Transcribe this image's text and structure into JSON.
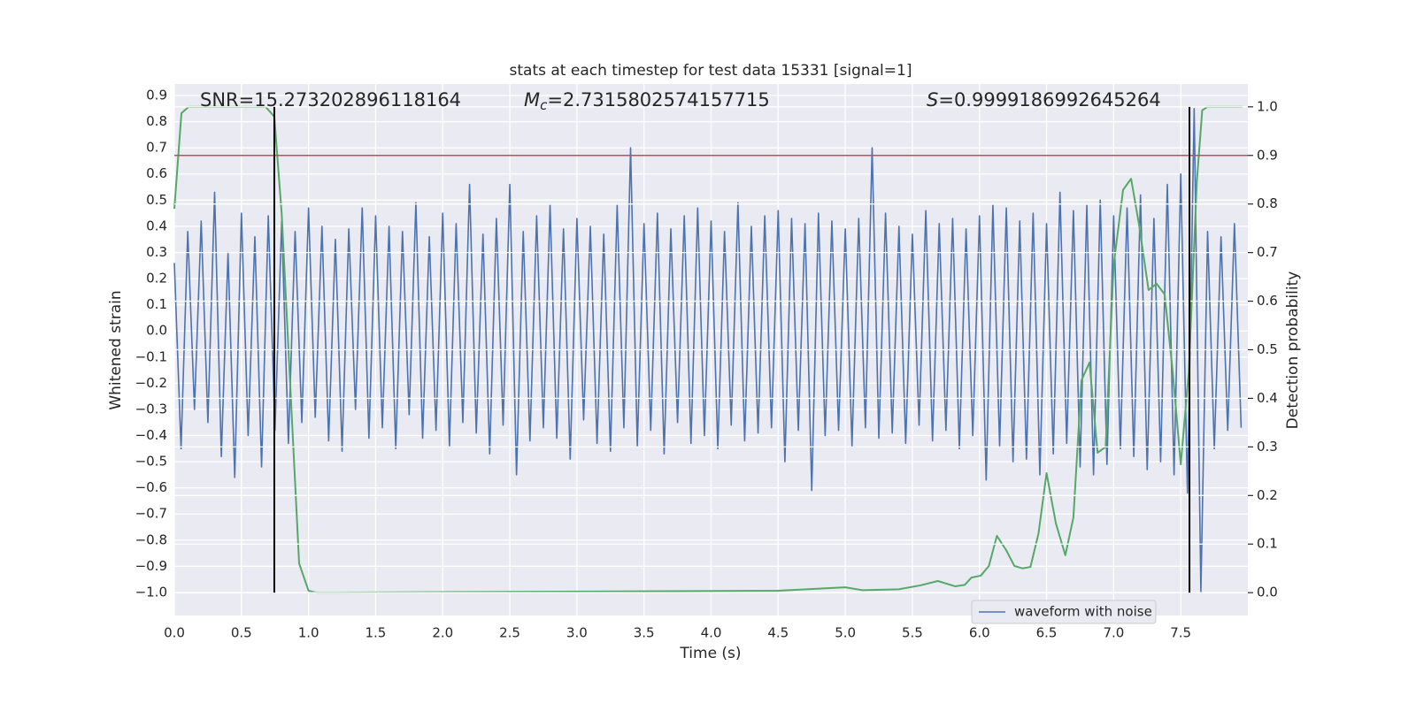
{
  "chart_data": {
    "type": "line",
    "title": "stats at each timestep for test data 15331 [signal=1]",
    "xlabel": "Time (s)",
    "ylabel": "Whitened strain",
    "y2label": "Detection probability",
    "annotations": [
      {
        "text": "SNR=15.273202896118164"
      },
      {
        "symbol": "M",
        "subscript": "c",
        "text": "=2.7315802574157715"
      },
      {
        "symbol": "S",
        "text": "=0.9999186992645264"
      }
    ],
    "xlim": [
      0,
      8
    ],
    "ylim": [
      -1.088,
      0.944
    ],
    "y2lim": [
      -0.047,
      1.047
    ],
    "xticks": [
      {
        "value": 0,
        "label": "0.0"
      },
      {
        "value": 0.5,
        "label": "0.5"
      },
      {
        "value": 1,
        "label": "1.0"
      },
      {
        "value": 1.5,
        "label": "1.5"
      },
      {
        "value": 2,
        "label": "2.0"
      },
      {
        "value": 2.5,
        "label": "2.5"
      },
      {
        "value": 3,
        "label": "3.0"
      },
      {
        "value": 3.5,
        "label": "3.5"
      },
      {
        "value": 4,
        "label": "4.0"
      },
      {
        "value": 4.5,
        "label": "4.5"
      },
      {
        "value": 5,
        "label": "5.0"
      },
      {
        "value": 5.5,
        "label": "5.5"
      },
      {
        "value": 6,
        "label": "6.0"
      },
      {
        "value": 6.5,
        "label": "6.5"
      },
      {
        "value": 7,
        "label": "7.0"
      },
      {
        "value": 7.5,
        "label": "7.5"
      }
    ],
    "yticks": [
      {
        "value": -1,
        "label": "−1.0"
      },
      {
        "value": -0.9,
        "label": "−0.9"
      },
      {
        "value": -0.8,
        "label": "−0.8"
      },
      {
        "value": -0.7,
        "label": "−0.7"
      },
      {
        "value": -0.6,
        "label": "−0.6"
      },
      {
        "value": -0.5,
        "label": "−0.5"
      },
      {
        "value": -0.4,
        "label": "−0.4"
      },
      {
        "value": -0.3,
        "label": "−0.3"
      },
      {
        "value": -0.2,
        "label": "−0.2"
      },
      {
        "value": -0.1,
        "label": "−0.1"
      },
      {
        "value": 0,
        "label": "0.0"
      },
      {
        "value": 0.1,
        "label": "0.1"
      },
      {
        "value": 0.2,
        "label": "0.2"
      },
      {
        "value": 0.3,
        "label": "0.3"
      },
      {
        "value": 0.4,
        "label": "0.4"
      },
      {
        "value": 0.5,
        "label": "0.5"
      },
      {
        "value": 0.6,
        "label": "0.6"
      },
      {
        "value": 0.7,
        "label": "0.7"
      },
      {
        "value": 0.8,
        "label": "0.8"
      },
      {
        "value": 0.9,
        "label": "0.9"
      }
    ],
    "y2ticks": [
      {
        "value": 0,
        "label": "0.0"
      },
      {
        "value": 0.1,
        "label": "0.1"
      },
      {
        "value": 0.2,
        "label": "0.2"
      },
      {
        "value": 0.3,
        "label": "0.3"
      },
      {
        "value": 0.4,
        "label": "0.4"
      },
      {
        "value": 0.5,
        "label": "0.5"
      },
      {
        "value": 0.6,
        "label": "0.6"
      },
      {
        "value": 0.7,
        "label": "0.7"
      },
      {
        "value": 0.8,
        "label": "0.8"
      },
      {
        "value": 0.9,
        "label": "0.9"
      },
      {
        "value": 1,
        "label": "1.0"
      }
    ],
    "grid": true,
    "legend": "lower right",
    "series": [
      {
        "name": "waveform with noise",
        "color": "#4c72b0",
        "x": [
          0,
          0.05,
          0.1,
          0.15,
          0.2,
          0.25,
          0.3,
          0.35,
          0.4,
          0.45,
          0.5,
          0.55,
          0.6,
          0.65,
          0.7,
          0.75,
          0.8,
          0.85,
          0.9,
          0.95,
          1,
          1.05,
          1.1,
          1.15,
          1.2,
          1.25,
          1.3,
          1.35,
          1.4,
          1.45,
          1.5,
          1.55,
          1.6,
          1.65,
          1.7,
          1.75,
          1.8,
          1.85,
          1.9,
          1.95,
          2,
          2.05,
          2.1,
          2.15,
          2.2,
          2.25,
          2.3,
          2.35,
          2.4,
          2.45,
          2.5,
          2.55,
          2.6,
          2.65,
          2.7,
          2.75,
          2.8,
          2.85,
          2.9,
          2.95,
          3,
          3.05,
          3.1,
          3.15,
          3.2,
          3.25,
          3.3,
          3.35,
          3.4,
          3.45,
          3.5,
          3.55,
          3.6,
          3.65,
          3.7,
          3.75,
          3.8,
          3.85,
          3.9,
          3.95,
          4,
          4.05,
          4.1,
          4.15,
          4.2,
          4.25,
          4.3,
          4.35,
          4.4,
          4.45,
          4.5,
          4.55,
          4.6,
          4.65,
          4.7,
          4.75,
          4.8,
          4.85,
          4.9,
          4.95,
          5,
          5.05,
          5.1,
          5.15,
          5.2,
          5.25,
          5.3,
          5.35,
          5.4,
          5.45,
          5.5,
          5.55,
          5.6,
          5.65,
          5.7,
          5.75,
          5.8,
          5.85,
          5.9,
          5.95,
          6,
          6.05,
          6.1,
          6.15,
          6.2,
          6.25,
          6.3,
          6.35,
          6.4,
          6.45,
          6.5,
          6.55,
          6.6,
          6.65,
          6.7,
          6.75,
          6.8,
          6.85,
          6.9,
          6.95,
          7,
          7.05,
          7.1,
          7.15,
          7.2,
          7.25,
          7.3,
          7.35,
          7.4,
          7.45,
          7.5,
          7.55,
          7.6,
          7.65,
          7.7,
          7.75,
          7.8,
          7.85,
          7.9,
          7.95
        ],
        "values": [
          0.26,
          -0.45,
          0.38,
          -0.3,
          0.42,
          -0.35,
          0.53,
          -0.48,
          0.3,
          -0.56,
          0.45,
          -0.4,
          0.36,
          -0.52,
          0.44,
          -0.38,
          0.42,
          -0.43,
          0.38,
          -0.35,
          0.47,
          -0.33,
          0.4,
          -0.42,
          0.35,
          -0.46,
          0.39,
          -0.3,
          0.47,
          -0.41,
          0.44,
          -0.37,
          0.4,
          -0.45,
          0.38,
          -0.32,
          0.49,
          -0.41,
          0.36,
          -0.38,
          0.45,
          -0.44,
          0.41,
          -0.35,
          0.56,
          -0.39,
          0.37,
          -0.47,
          0.43,
          -0.36,
          0.56,
          -0.55,
          0.38,
          -0.42,
          0.44,
          -0.37,
          0.48,
          -0.41,
          0.39,
          -0.49,
          0.43,
          -0.34,
          0.4,
          -0.43,
          0.37,
          -0.46,
          0.48,
          -0.37,
          0.7,
          -0.44,
          0.41,
          -0.38,
          0.45,
          -0.47,
          0.39,
          -0.35,
          0.44,
          -0.43,
          0.47,
          -0.4,
          0.42,
          -0.45,
          0.38,
          -0.36,
          0.49,
          -0.42,
          0.4,
          -0.39,
          0.44,
          -0.37,
          0.46,
          -0.5,
          0.43,
          -0.38,
          0.41,
          -0.61,
          0.45,
          -0.4,
          0.42,
          -0.38,
          0.39,
          -0.44,
          0.43,
          -0.37,
          0.7,
          -0.41,
          0.45,
          -0.39,
          0.4,
          -0.43,
          0.37,
          -0.36,
          0.46,
          -0.42,
          0.41,
          -0.38,
          0.43,
          -0.45,
          0.39,
          -0.4,
          0.44,
          -0.57,
          0.48,
          -0.44,
          0.47,
          -0.5,
          0.42,
          -0.49,
          0.45,
          -0.55,
          0.41,
          -0.47,
          0.53,
          -0.43,
          0.46,
          -0.52,
          0.48,
          -0.55,
          0.5,
          -0.51,
          0.44,
          -0.45,
          0.47,
          -0.48,
          0.52,
          -0.53,
          0.43,
          -0.5,
          0.56,
          -0.55,
          0.6,
          -0.62,
          0.85,
          -1.0,
          0.38,
          -0.45,
          0.36,
          -0.38,
          0.41,
          -0.37
        ]
      },
      {
        "color": "#55a868",
        "axis": "y2",
        "x": [
          0,
          0.053,
          0.106,
          0.68,
          0.745,
          0.8,
          0.93,
          1.0,
          1.06,
          4.5,
          5.0,
          5.13,
          5.4,
          5.56,
          5.69,
          5.82,
          5.89,
          5.94,
          6.01,
          6.07,
          6.13,
          6.2,
          6.26,
          6.32,
          6.38,
          6.44,
          6.5,
          6.57,
          6.64,
          6.7,
          6.76,
          6.82,
          6.88,
          6.94,
          7.0,
          7.07,
          7.13,
          7.19,
          7.26,
          7.32,
          7.38,
          7.44,
          7.5,
          7.56,
          7.62,
          7.66,
          7.7,
          7.96
        ],
        "values": [
          0.79,
          0.987,
          1.0,
          1.0,
          0.98,
          0.78,
          0.06,
          0.004,
          0.0,
          0.004,
          0.011,
          0.005,
          0.007,
          0.015,
          0.024,
          0.013,
          0.016,
          0.031,
          0.035,
          0.055,
          0.117,
          0.087,
          0.055,
          0.05,
          0.053,
          0.122,
          0.246,
          0.142,
          0.077,
          0.155,
          0.437,
          0.474,
          0.288,
          0.3,
          0.674,
          0.829,
          0.852,
          0.756,
          0.623,
          0.636,
          0.614,
          0.455,
          0.264,
          0.455,
          0.847,
          0.993,
          1.0,
          1.0
        ]
      }
    ],
    "threshold": {
      "value": 0.9,
      "color": "#c44e52",
      "axis": "y2"
    },
    "vlines": {
      "x": [
        0.745,
        7.565
      ],
      "range": [
        0,
        1
      ],
      "color": "#000000",
      "axis": "y2"
    }
  }
}
